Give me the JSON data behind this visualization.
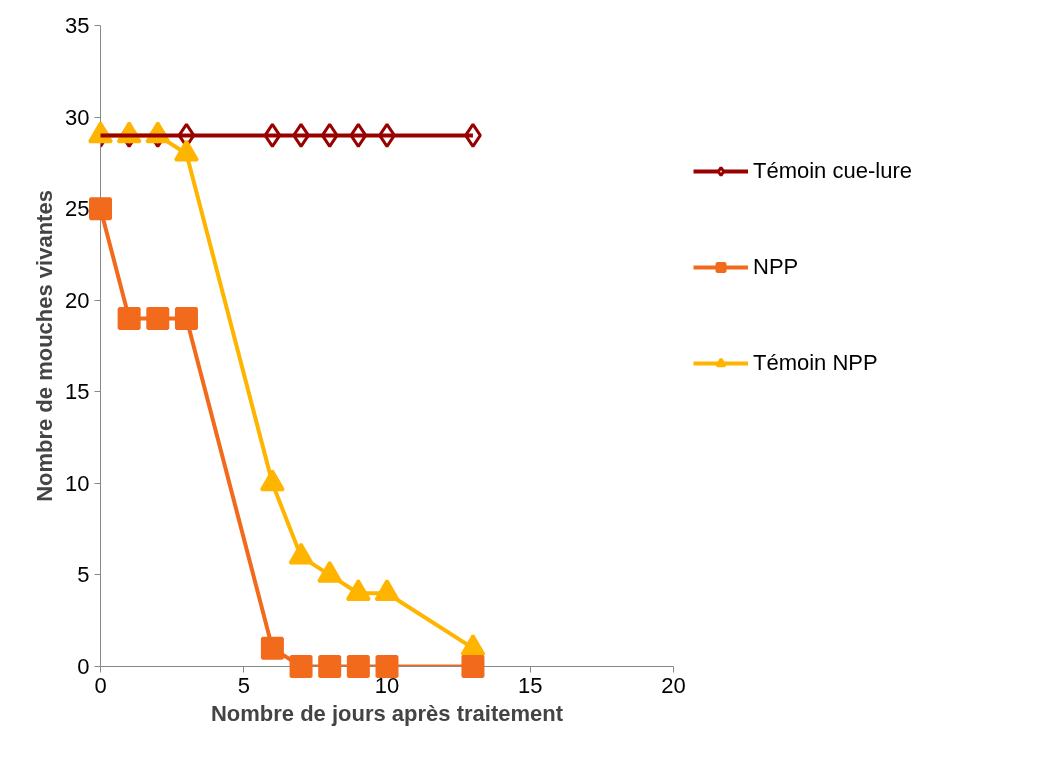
{
  "chart_data": {
    "type": "line",
    "xlabel": "Nombre de jours après traitement",
    "ylabel": "Nombre de mouches vivantes",
    "x": [
      0,
      1,
      2,
      3,
      6,
      7,
      8,
      9,
      10,
      13
    ],
    "series": [
      {
        "name": "Témoin cue-lure",
        "color": "#990000",
        "marker": "diamond",
        "values": [
          29,
          29,
          29,
          29,
          29,
          29,
          29,
          29,
          29,
          29
        ]
      },
      {
        "name": "NPP",
        "color": "#f26a1b",
        "marker": "square",
        "values": [
          25,
          19,
          19,
          19,
          1,
          0,
          0,
          0,
          0,
          0
        ]
      },
      {
        "name": "Témoin NPP",
        "color": "#ffb400",
        "marker": "triangle",
        "values": [
          29,
          29,
          29,
          28,
          10,
          6,
          5,
          4,
          4,
          1
        ]
      }
    ],
    "xlim": [
      0,
      20
    ],
    "xticks": [
      0,
      5,
      10,
      15,
      20
    ],
    "ylim": [
      0,
      35
    ],
    "yticks": [
      0,
      5,
      10,
      15,
      20,
      25,
      30,
      35
    ],
    "grid": false,
    "legend": "right",
    "line_style": "solid"
  }
}
